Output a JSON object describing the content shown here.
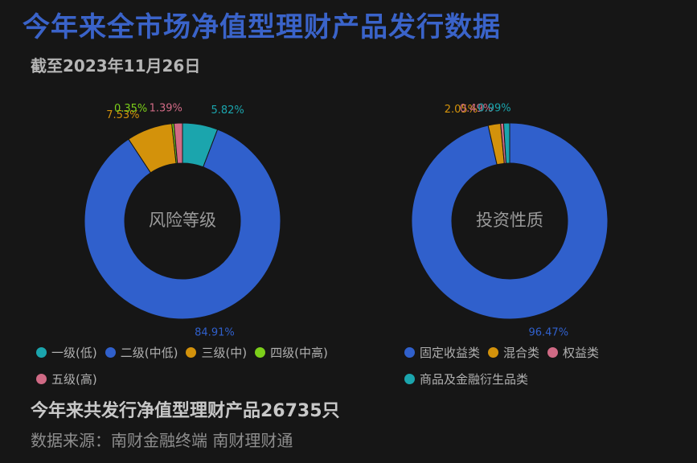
{
  "header": {
    "title": "今年来全市场净值型理财产品发行数据",
    "subtitle": "截至2023年11月26日"
  },
  "chart_data": [
    {
      "type": "pie",
      "center_label": "风险等级",
      "categories": [
        "一级(低)",
        "二级(中低)",
        "三级(中)",
        "四级(中高)",
        "五级(高)"
      ],
      "values": [
        5.82,
        84.91,
        7.53,
        0.35,
        1.39
      ],
      "labels": [
        "5.82%",
        "84.91%",
        "7.53%",
        "0.35%",
        "1.39%"
      ],
      "colors": [
        "#1ba5ad",
        "#3060cc",
        "#d3920b",
        "#7ccf1a",
        "#d06a85"
      ],
      "legend_position": "bottom"
    },
    {
      "type": "pie",
      "center_label": "投资性质",
      "categories": [
        "固定收益类",
        "混合类",
        "权益类",
        "商品及金融衍生品类"
      ],
      "values": [
        96.47,
        2.05,
        0.49,
        0.99
      ],
      "labels": [
        "96.47%",
        "2.05%",
        "0.49%",
        "0.99%"
      ],
      "colors": [
        "#3060cc",
        "#d3920b",
        "#d06a85",
        "#1ba5ad"
      ],
      "legend_position": "bottom"
    }
  ],
  "footer": {
    "summary": "今年来共发行净值型理财产品26735只",
    "source": "数据来源：南财金融终端 南财理财通"
  }
}
